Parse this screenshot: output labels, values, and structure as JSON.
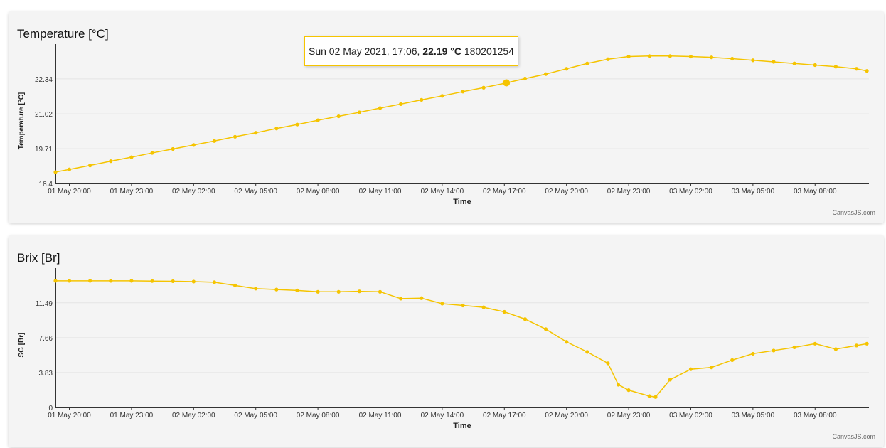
{
  "chart_data": [
    {
      "type": "line",
      "title": "Temperature [°C]",
      "xlabel": "Time",
      "ylabel": "Temperature [°C]",
      "credit": "CanvasJS.com",
      "color": "#f5c400",
      "ylim": [
        18.4,
        23.65
      ],
      "yticks": [
        "18.4",
        "19.71",
        "21.02",
        "22.34"
      ],
      "xlim": [
        -0.67,
        38.6
      ],
      "x_unit": "hours since 01 May 20:00",
      "xticks": [
        "01 May 20:00",
        "01 May 23:00",
        "02 May 02:00",
        "02 May 05:00",
        "02 May 08:00",
        "02 May 11:00",
        "02 May 14:00",
        "02 May 17:00",
        "02 May 20:00",
        "02 May 23:00",
        "03 May 02:00",
        "03 May 05:00",
        "03 May 08:00"
      ],
      "x": [
        -0.67,
        0,
        1,
        2,
        3,
        4,
        5,
        6,
        7,
        8,
        9,
        10,
        11,
        12,
        13,
        14,
        15,
        16,
        17,
        18,
        19,
        20,
        21,
        21.1,
        22,
        23,
        24,
        25,
        26,
        27,
        28,
        29,
        30,
        31,
        32,
        33,
        34,
        35,
        36,
        37,
        38,
        38.5
      ],
      "y": [
        18.83,
        18.93,
        19.08,
        19.24,
        19.39,
        19.55,
        19.7,
        19.85,
        20.0,
        20.16,
        20.31,
        20.47,
        20.62,
        20.78,
        20.93,
        21.08,
        21.24,
        21.39,
        21.55,
        21.7,
        21.86,
        22.01,
        22.17,
        22.19,
        22.35,
        22.52,
        22.72,
        22.92,
        23.08,
        23.18,
        23.2,
        23.2,
        23.18,
        23.15,
        23.1,
        23.04,
        22.98,
        22.92,
        22.86,
        22.8,
        22.72,
        22.64
      ],
      "tooltip": {
        "x": 21.1,
        "date": "Sun 02 May 2021, 17:06,",
        "value": "22.19 °C",
        "extra": "180201254"
      }
    },
    {
      "type": "line",
      "title": "Brix [Br]",
      "xlabel": "Time",
      "ylabel": "SG [Br]",
      "credit": "CanvasJS.com",
      "color": "#f5c400",
      "ylim": [
        0,
        15.3
      ],
      "yticks": [
        "0",
        "3.83",
        "7.66",
        "11.49"
      ],
      "xlim": [
        -0.67,
        38.6
      ],
      "xticks": [
        "01 May 20:00",
        "01 May 23:00",
        "02 May 02:00",
        "02 May 05:00",
        "02 May 08:00",
        "02 May 11:00",
        "02 May 14:00",
        "02 May 17:00",
        "02 May 20:00",
        "02 May 23:00",
        "03 May 02:00",
        "03 May 05:00",
        "03 May 08:00"
      ],
      "x": [
        -0.67,
        0,
        1,
        2,
        3,
        4,
        5,
        6,
        7,
        8,
        9,
        10,
        11,
        12,
        13,
        14,
        15,
        16,
        17,
        18,
        19,
        20,
        21,
        22,
        23,
        24,
        25,
        26,
        26.5,
        27,
        28,
        28.3,
        29,
        30,
        31,
        32,
        33,
        34,
        35,
        36,
        37,
        38,
        38.5
      ],
      "y": [
        13.9,
        13.9,
        13.9,
        13.9,
        13.9,
        13.88,
        13.86,
        13.82,
        13.75,
        13.4,
        13.05,
        12.95,
        12.85,
        12.7,
        12.7,
        12.75,
        12.7,
        11.95,
        12.0,
        11.4,
        11.2,
        11.0,
        10.5,
        9.7,
        8.6,
        7.2,
        6.1,
        4.85,
        2.5,
        1.9,
        1.25,
        1.15,
        3.05,
        4.2,
        4.4,
        5.2,
        5.9,
        6.25,
        6.6,
        7.0,
        6.4,
        6.8,
        7.0
      ]
    }
  ]
}
